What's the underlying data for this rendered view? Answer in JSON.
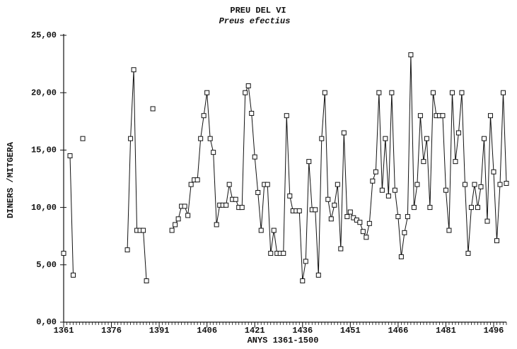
{
  "chart_data": {
    "type": "line",
    "title": "PREU DEL VI",
    "subtitle": "Preus efectius",
    "x_label": "ANYS 1361-1500",
    "y_label": "DINERS /MITGERA",
    "xlim": [
      1361,
      1500
    ],
    "ylim": [
      0,
      25
    ],
    "xticks": [
      1361,
      1376,
      1391,
      1406,
      1421,
      1436,
      1451,
      1466,
      1481,
      1496
    ],
    "yticks": [
      {
        "value": 0,
        "label": "0,00"
      },
      {
        "value": 5,
        "label": "5,00"
      },
      {
        "value": 10,
        "label": "10,00"
      },
      {
        "value": 15,
        "label": "15,00"
      },
      {
        "value": 20,
        "label": "20,00"
      },
      {
        "value": 25,
        "label": "25,00"
      }
    ],
    "marker": "square",
    "x": [
      1361,
      1362,
      1363,
      1364,
      1365,
      1367,
      1368,
      1381,
      1382,
      1383,
      1384,
      1385,
      1386,
      1387,
      1388,
      1389,
      1390,
      1395,
      1396,
      1397,
      1398,
      1399,
      1400,
      1401,
      1402,
      1403,
      1404,
      1405,
      1406,
      1407,
      1408,
      1409,
      1410,
      1411,
      1412,
      1413,
      1414,
      1415,
      1416,
      1417,
      1418,
      1419,
      1420,
      1421,
      1422,
      1423,
      1424,
      1425,
      1426,
      1427,
      1428,
      1429,
      1430,
      1431,
      1432,
      1433,
      1434,
      1435,
      1436,
      1437,
      1438,
      1439,
      1440,
      1441,
      1442,
      1443,
      1444,
      1445,
      1446,
      1447,
      1448,
      1449,
      1450,
      1451,
      1452,
      1453,
      1454,
      1455,
      1456,
      1457,
      1458,
      1459,
      1460,
      1461,
      1462,
      1463,
      1464,
      1465,
      1466,
      1467,
      1468,
      1469,
      1470,
      1471,
      1472,
      1473,
      1474,
      1475,
      1476,
      1477,
      1478,
      1479,
      1480,
      1481,
      1482,
      1483,
      1484,
      1485,
      1486,
      1487,
      1488,
      1489,
      1490,
      1491,
      1492,
      1493,
      1494,
      1495,
      1496,
      1497,
      1498,
      1499,
      1500
    ],
    "series": [
      {
        "color": "#111111",
        "values": [
          6,
          null,
          14.5,
          4.1,
          null,
          16,
          null,
          6.3,
          16,
          22,
          8,
          8,
          8,
          3.6,
          null,
          18.6,
          null,
          8,
          8.5,
          9,
          10.1,
          10.1,
          9.3,
          12,
          12.4,
          12.4,
          16,
          18,
          20,
          16,
          14.8,
          8.5,
          10.2,
          10.2,
          10.2,
          12,
          10.7,
          10.7,
          10,
          10,
          20,
          20.6,
          18.2,
          14.4,
          11.3,
          8,
          12,
          12,
          6,
          8,
          6,
          6,
          6,
          18,
          11,
          9.7,
          9.7,
          9.7,
          3.6,
          5.3,
          14,
          9.8,
          9.8,
          4.1,
          16,
          20,
          10.7,
          9,
          10.2,
          12,
          6.4,
          16.5,
          9.2,
          9.6,
          9.1,
          8.9,
          8.7,
          7.9,
          7.4,
          8.6,
          12.3,
          13.1,
          20,
          11.5,
          16,
          11,
          20,
          11.5,
          9.2,
          5.7,
          7.8,
          9.2,
          23.3,
          10,
          12,
          18,
          14,
          16,
          10,
          20,
          18,
          18,
          18,
          11.5,
          8,
          20,
          14,
          16.5,
          20,
          12,
          6,
          10,
          12,
          10,
          11.8,
          16,
          8.8,
          18,
          13.1,
          7.1,
          12,
          20,
          12.1
        ]
      }
    ]
  }
}
